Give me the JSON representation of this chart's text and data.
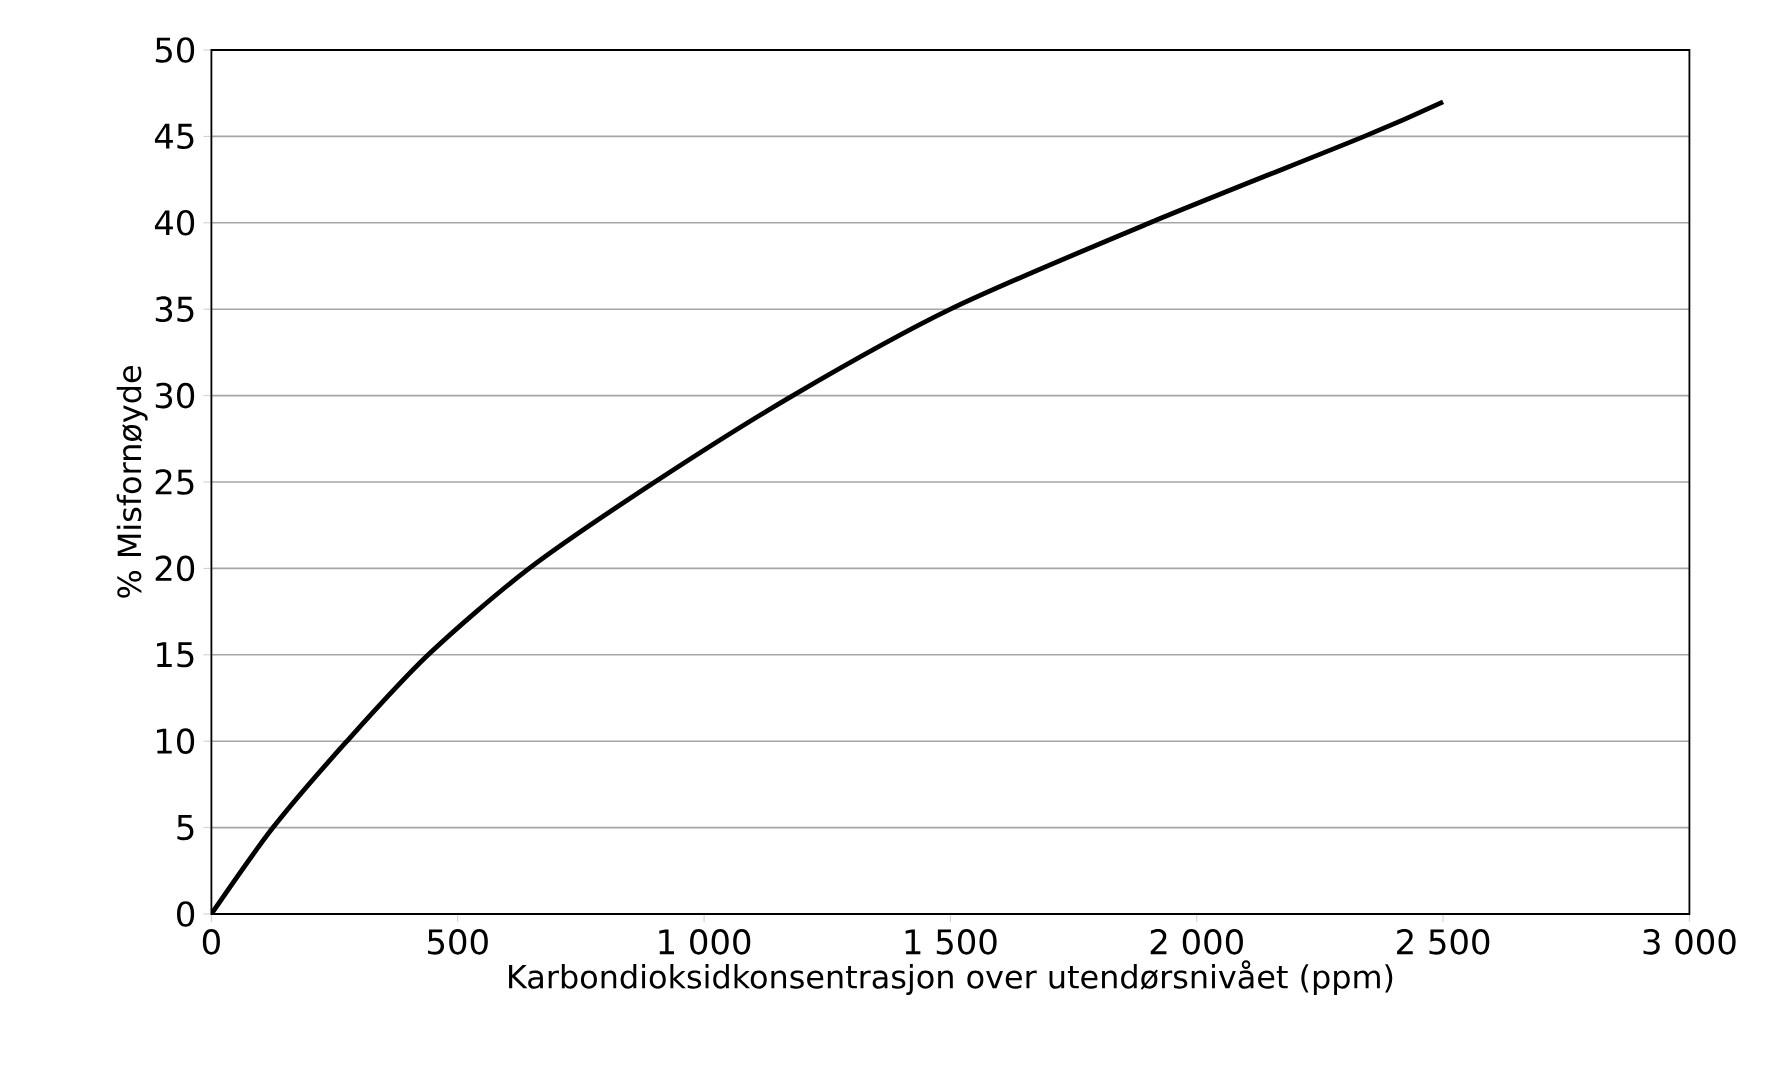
{
  "chart_data": {
    "type": "line",
    "xlabel": "Karbondioksidkonsentrasjon over utendørsnivået (ppm)",
    "ylabel": "% Misfornøyde",
    "x": [
      0,
      125,
      275,
      440,
      645,
      900,
      1180,
      1500,
      1905,
      2340,
      2500
    ],
    "series": [
      {
        "color": "#000000",
        "values": [
          0,
          5,
          10,
          15,
          20,
          25,
          30,
          35,
          40,
          45,
          47
        ]
      }
    ],
    "xlim": [
      0,
      3000
    ],
    "xticks": [
      0,
      500,
      {
        "value": 1000,
        "label": "1 000"
      },
      {
        "value": 1500,
        "label": "1 500"
      },
      {
        "value": 2000,
        "label": "2 000"
      },
      {
        "value": 2500,
        "label": "2 500"
      },
      {
        "value": 3000,
        "label": "3 000"
      }
    ],
    "ylim": [
      0,
      50
    ],
    "yticks": [
      0,
      5,
      10,
      15,
      20,
      25,
      30,
      35,
      40,
      45,
      50
    ],
    "grid": "y"
  }
}
